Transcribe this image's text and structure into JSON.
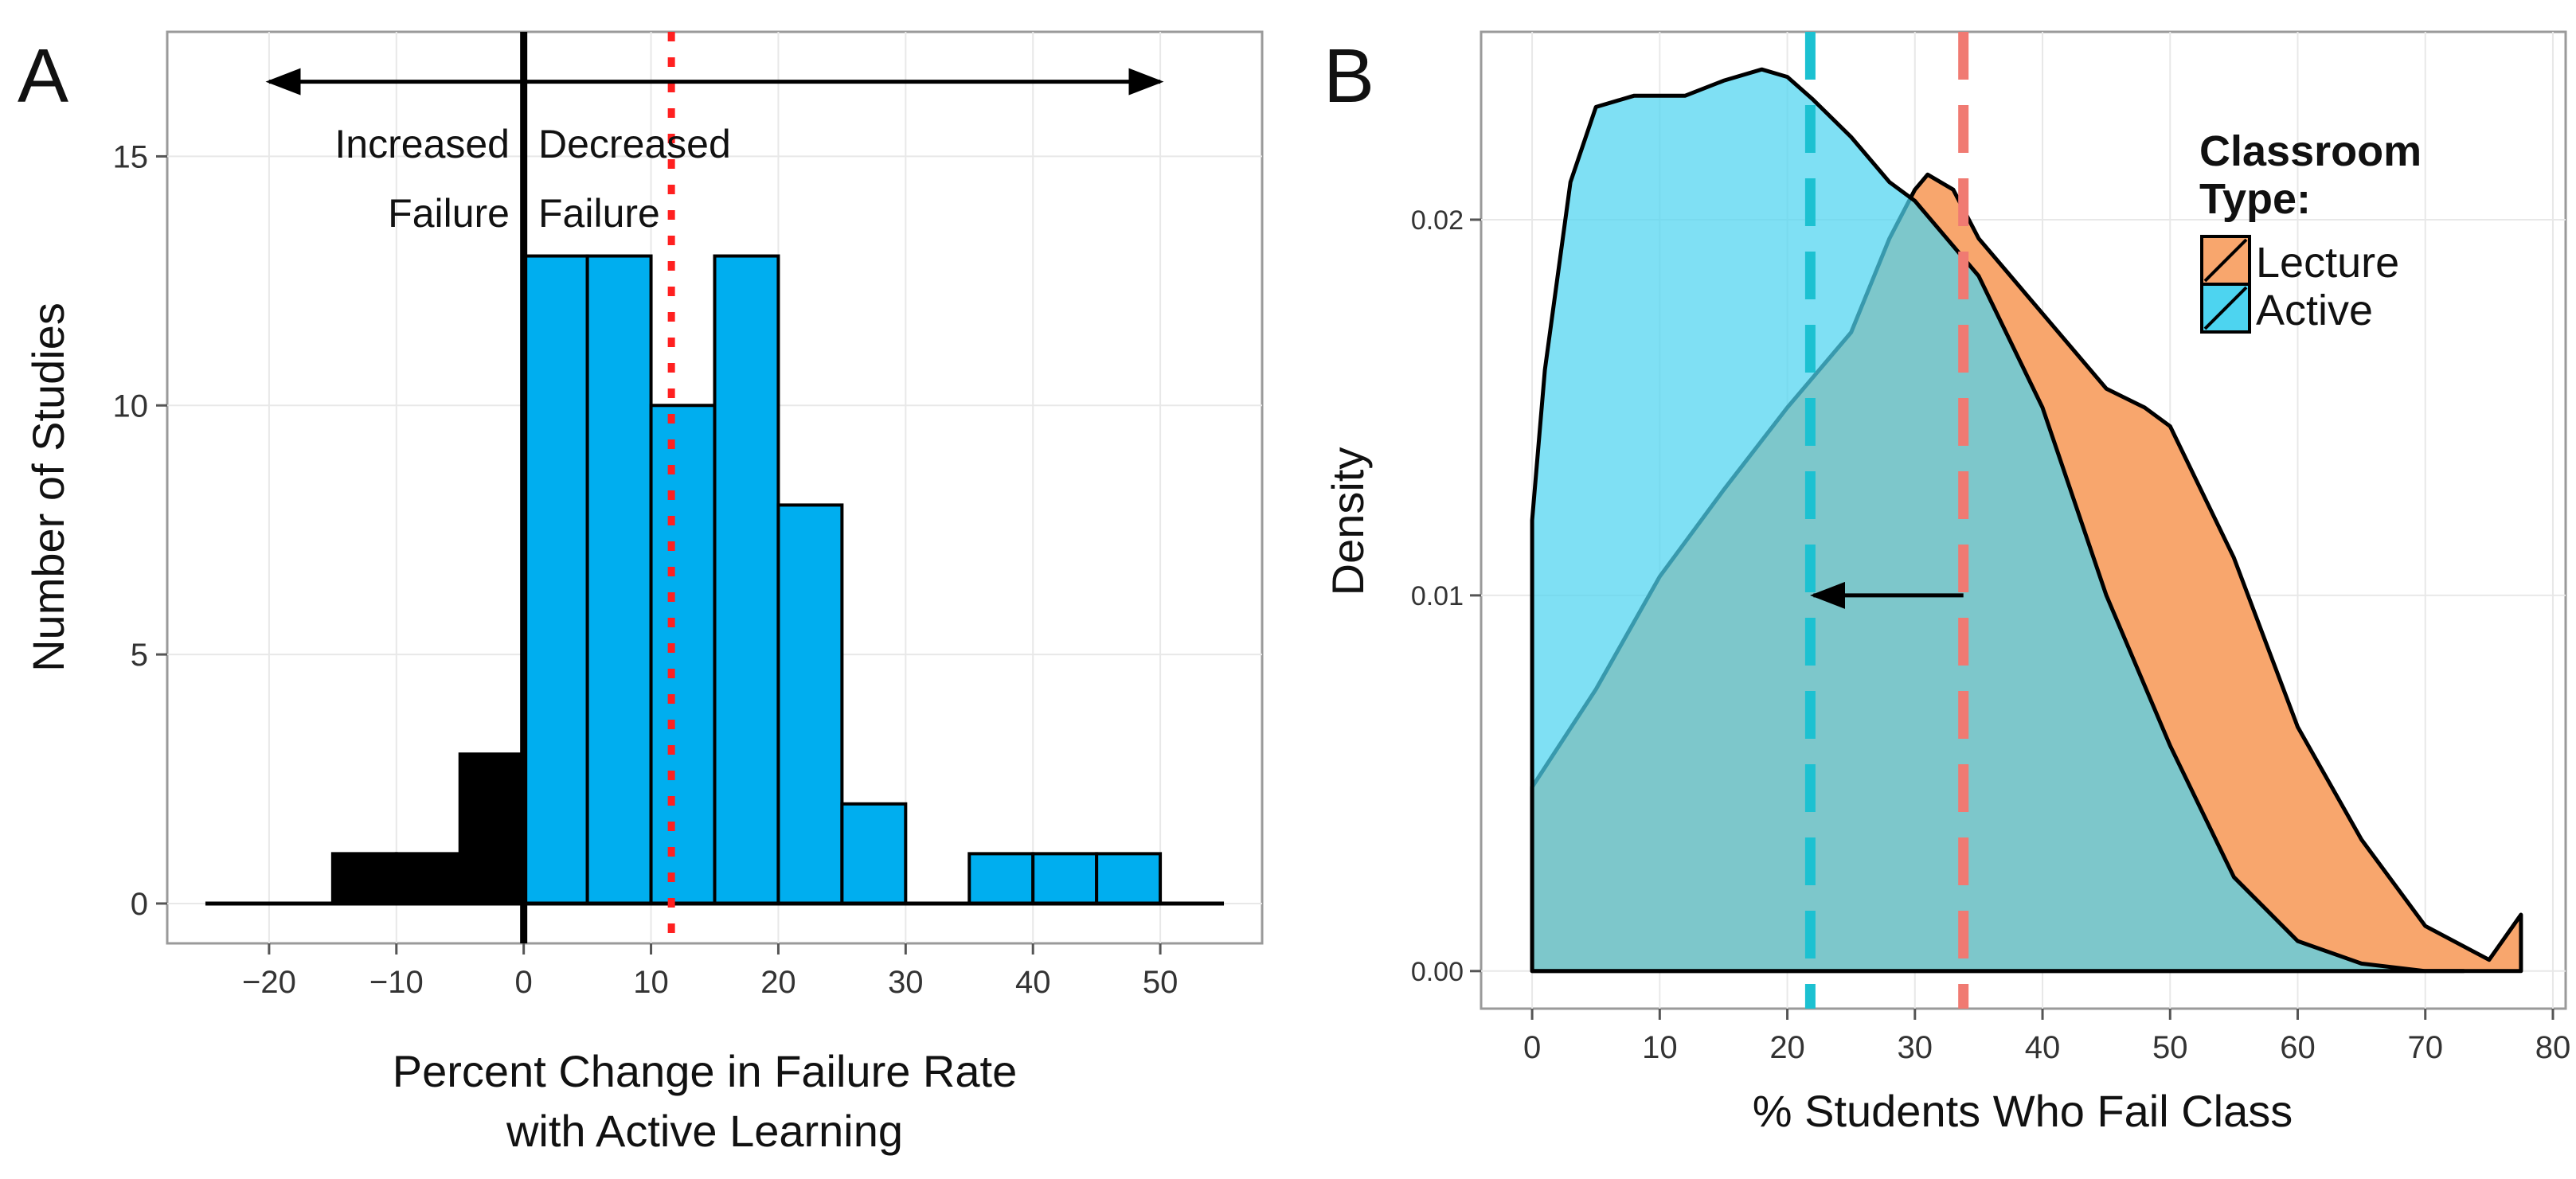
{
  "chart_data": [
    {
      "panel": "A",
      "type": "bar",
      "xlabel_line1": "Percent Change in Failure Rate",
      "xlabel_line2": "with Active Learning",
      "ylabel": "Number of Studies",
      "xlim": [
        -28,
        58
      ],
      "ylim": [
        -0.8,
        17.5
      ],
      "xticks": [
        -20,
        -10,
        0,
        10,
        20,
        30,
        40,
        50
      ],
      "xtick_labels": [
        "−20",
        "−10",
        "0",
        "10",
        "20",
        "30",
        "40",
        "50"
      ],
      "yticks": [
        0,
        5,
        10,
        15
      ],
      "ytick_labels": [
        "0",
        "5",
        "10",
        "15"
      ],
      "bins": [
        {
          "x0": -15,
          "x1": -10,
          "count": 1,
          "group": "increased"
        },
        {
          "x0": -10,
          "x1": -5,
          "count": 1,
          "group": "increased"
        },
        {
          "x0": -5,
          "x1": 0,
          "count": 3,
          "group": "increased"
        },
        {
          "x0": 0,
          "x1": 5,
          "count": 13,
          "group": "decreased"
        },
        {
          "x0": 5,
          "x1": 10,
          "count": 13,
          "group": "decreased"
        },
        {
          "x0": 10,
          "x1": 15,
          "count": 10,
          "group": "decreased"
        },
        {
          "x0": 15,
          "x1": 20,
          "count": 13,
          "group": "decreased"
        },
        {
          "x0": 20,
          "x1": 25,
          "count": 8,
          "group": "decreased"
        },
        {
          "x0": 25,
          "x1": 30,
          "count": 2,
          "group": "decreased"
        },
        {
          "x0": 35,
          "x1": 40,
          "count": 1,
          "group": "decreased"
        },
        {
          "x0": 40,
          "x1": 45,
          "count": 1,
          "group": "decreased"
        },
        {
          "x0": 45,
          "x1": 50,
          "count": 1,
          "group": "decreased"
        }
      ],
      "baseline_range": [
        -25,
        55
      ],
      "zero_line_x": 0,
      "mean_line_x": 11.6,
      "double_arrow": {
        "x_from": -20,
        "x_to": 50,
        "y": 16.5
      },
      "annotations": {
        "increased_line1": "Increased",
        "increased_line2": "Failure",
        "decreased_line1": "Decreased",
        "decreased_line2": "Failure"
      },
      "colors": {
        "increased": "#000000",
        "decreased": "#00aeef",
        "mean_line": "#ff2020",
        "grid": "#e8e8e8"
      }
    },
    {
      "panel": "B",
      "type": "area",
      "xlabel": "% Students Who Fail Class",
      "ylabel": "Density",
      "xlim": [
        -4,
        81
      ],
      "ylim": [
        -0.001,
        0.025
      ],
      "xticks": [
        0,
        10,
        20,
        30,
        40,
        50,
        60,
        70,
        80
      ],
      "xtick_labels": [
        "0",
        "10",
        "20",
        "30",
        "40",
        "50",
        "60",
        "70",
        "80"
      ],
      "yticks": [
        0.0,
        0.01,
        0.02
      ],
      "ytick_labels": [
        "0.00",
        "0.01",
        "0.02"
      ],
      "legend": {
        "title_line1": "Classroom",
        "title_line2": "Type:",
        "entries": [
          {
            "label": "Lecture",
            "color": "#f8a66d"
          },
          {
            "label": "Active",
            "color": "#4dd4f0"
          }
        ],
        "position": "top-right"
      },
      "series": [
        {
          "name": "Lecture",
          "color": "#f8a66d",
          "x": [
            0,
            5,
            10,
            15,
            20,
            25,
            28,
            30,
            31,
            33,
            35,
            40,
            45,
            48,
            50,
            55,
            60,
            65,
            70,
            75,
            77.5,
            77.5
          ],
          "y": [
            0.0049,
            0.0075,
            0.0105,
            0.0128,
            0.015,
            0.017,
            0.0195,
            0.0208,
            0.0212,
            0.0208,
            0.0195,
            0.0175,
            0.0155,
            0.015,
            0.0145,
            0.011,
            0.0065,
            0.0035,
            0.0012,
            0.0003,
            0.0015,
            0.0
          ]
        },
        {
          "name": "Active",
          "color": "#4dd4f0",
          "x": [
            0,
            1,
            3,
            5,
            8,
            10,
            12,
            15,
            18,
            20,
            22,
            25,
            28,
            30,
            35,
            40,
            45,
            50,
            55,
            60,
            65,
            70,
            73
          ],
          "y": [
            0.012,
            0.016,
            0.021,
            0.023,
            0.0233,
            0.0233,
            0.0233,
            0.0237,
            0.024,
            0.0238,
            0.0232,
            0.0222,
            0.021,
            0.0205,
            0.0185,
            0.015,
            0.01,
            0.006,
            0.0025,
            0.0008,
            0.0002,
            0.0,
            0.0
          ]
        }
      ],
      "mean_lines": [
        {
          "name": "Active mean",
          "x": 21.8,
          "color": "#1cc1d1"
        },
        {
          "name": "Lecture mean",
          "x": 33.8,
          "color": "#f07a72"
        }
      ],
      "shift_arrow": {
        "x_from": 33.8,
        "x_to": 21.8,
        "y": 0.01
      },
      "colors": {
        "grid": "#e8e8e8",
        "overlap": "#96b3b8"
      }
    }
  ]
}
